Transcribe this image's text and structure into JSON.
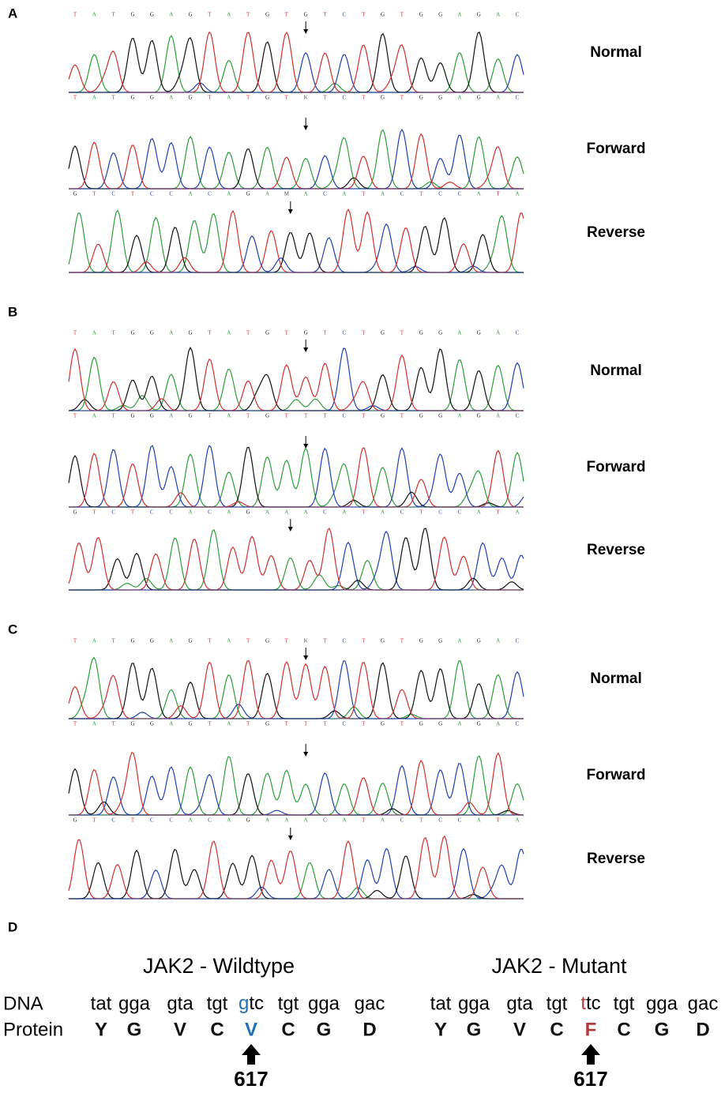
{
  "panels": [
    {
      "label": "A",
      "tracks": [
        {
          "name": "Normal",
          "top": "TATGGAGTATGTGTCTGTGGAGAC",
          "bottom": "TATGGAGTATGTKTCTGTGGAGAC"
        },
        {
          "name": "Forward",
          "bottom": "GTCTCCACAGAMACATACTCCATA"
        },
        {
          "name": "Reverse"
        }
      ]
    },
    {
      "label": "B",
      "tracks": [
        {
          "name": "Normal",
          "top": "TATGGAGTATGTGTCTGTGGAGAC",
          "bottom": "TATGGAGTATGTTTCTGTGGAGAC"
        },
        {
          "name": "Forward",
          "bottom": "GTCTCCACAGAAACATACTCCATA"
        },
        {
          "name": "Reverse"
        }
      ]
    },
    {
      "label": "C",
      "tracks": [
        {
          "name": "Normal",
          "top": "TATGGAGTATGTKTCTGTGGAGAC",
          "bottom": "TATGGAGTATGTTTCTGTGGAGAC"
        },
        {
          "name": "Forward",
          "bottom": "GTCTCCACAGAAACATACTCCATA"
        },
        {
          "name": "Reverse"
        }
      ]
    }
  ],
  "panel_d": {
    "label": "D",
    "row_labels": [
      "DNA",
      "Protein"
    ],
    "wildtype": {
      "title": "JAK2 - Wildtype",
      "codons": [
        "tat",
        "gga",
        "gta",
        "tgt",
        {
          "mark": "g",
          "rest": "tc"
        },
        "tgt",
        "gga",
        "gac"
      ],
      "protein": [
        "Y",
        "G",
        "V",
        "C",
        "V",
        "C",
        "G",
        "D"
      ],
      "position": "617"
    },
    "mutant": {
      "title": "JAK2 - Mutant",
      "codons": [
        "tat",
        "gga",
        "gta",
        "tgt",
        {
          "mark": "t",
          "rest": "tc"
        },
        "tgt",
        "gga",
        "gac"
      ],
      "protein": [
        "Y",
        "G",
        "V",
        "C",
        "F",
        "C",
        "G",
        "D"
      ],
      "position": "617"
    }
  }
}
